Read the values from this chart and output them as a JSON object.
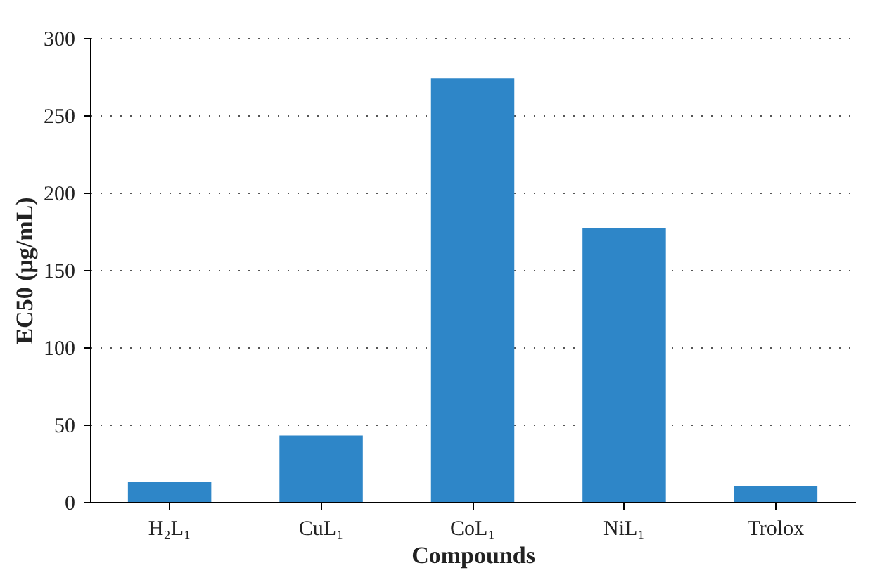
{
  "chart_data": {
    "type": "bar",
    "xlabel": "Compounds",
    "ylabel": "EC50 (μg/mL)",
    "categories": [
      "H₂L₁",
      "CuL₁",
      "CoL₁",
      "NiL₁",
      "Trolox"
    ],
    "values": [
      13,
      43,
      274,
      177,
      10
    ],
    "color": "#2e86c8",
    "ylim": [
      0,
      300
    ],
    "yticks": [
      0,
      50,
      100,
      150,
      200,
      250,
      300
    ],
    "grid": "y"
  }
}
